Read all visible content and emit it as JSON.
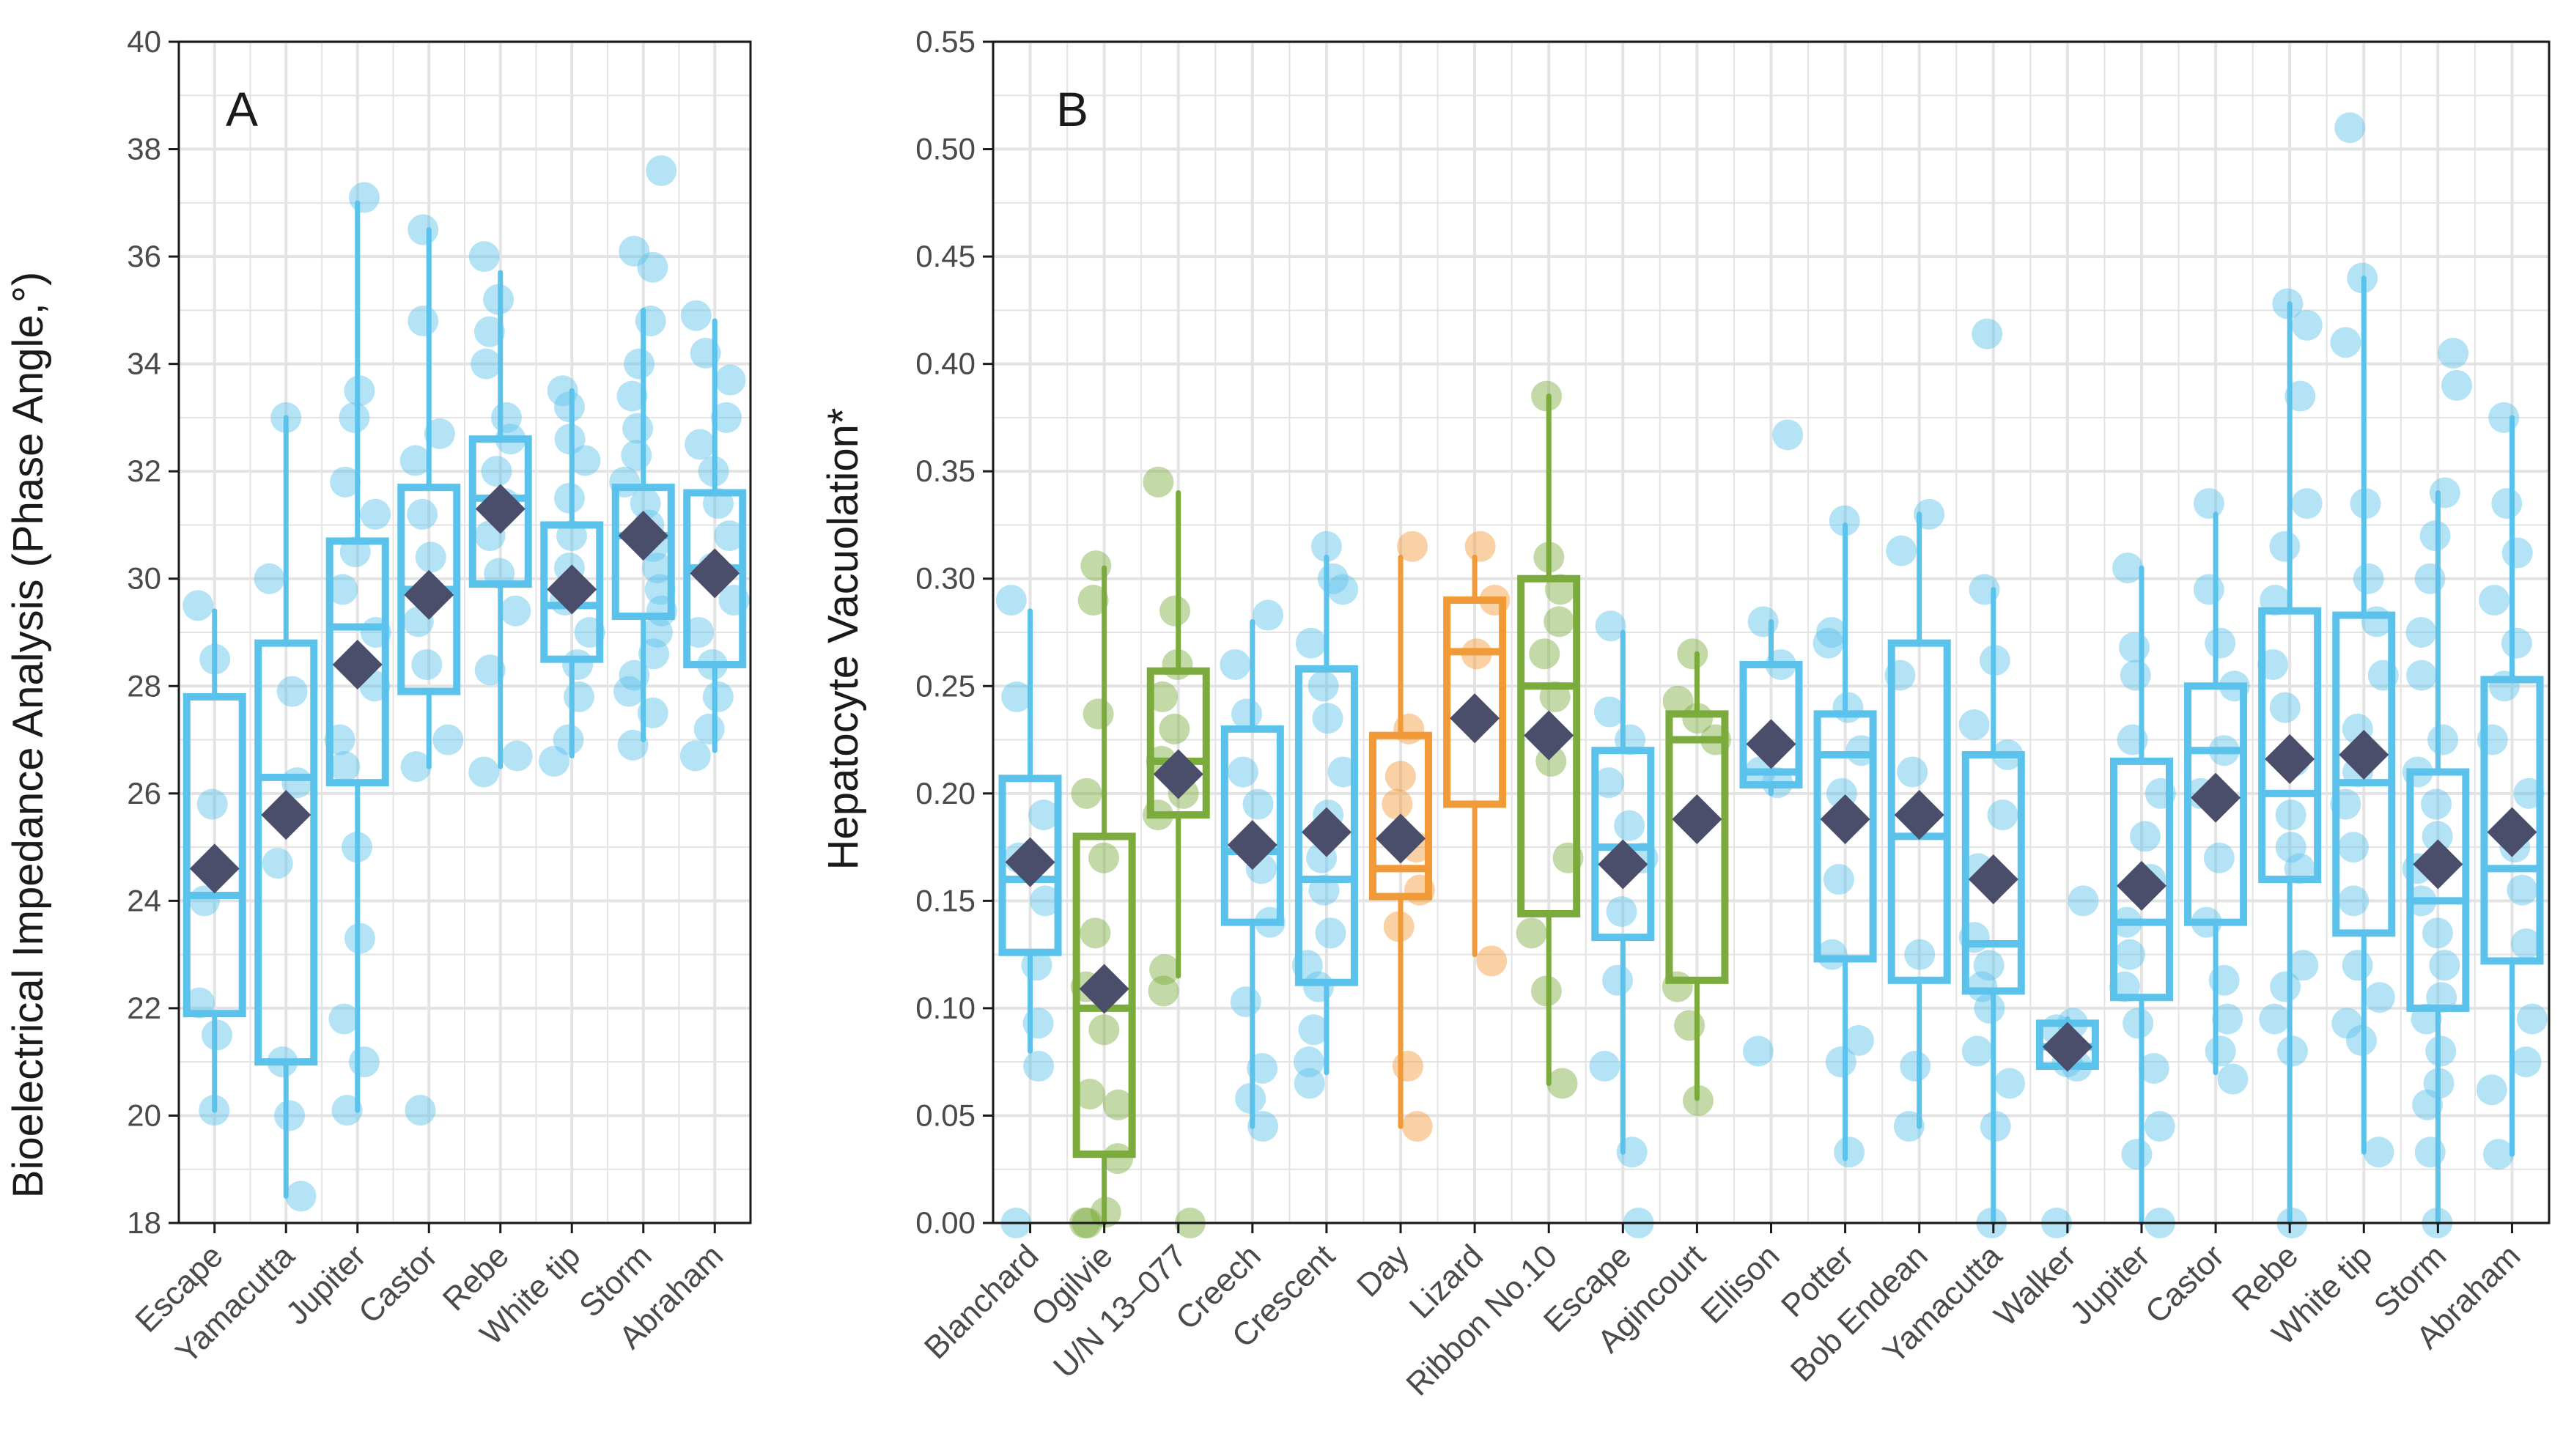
{
  "colors": {
    "blue": "#5bc2ec",
    "green": "#7aab3c",
    "orange": "#f29a37",
    "mean": "#4a4e6b",
    "grid": "#e3e3e3",
    "axis": "#1a1a1a"
  },
  "chart_data": [
    {
      "type": "box",
      "panel": "A",
      "title": "",
      "xlabel": "",
      "ylabel": "Bioelectrical Impedance Analysis (Phase Angle,°)",
      "ylim": [
        18,
        40
      ],
      "yticks": [
        18,
        20,
        22,
        24,
        26,
        28,
        30,
        32,
        34,
        36,
        38,
        40
      ],
      "ytick_labels": [
        "18",
        "20",
        "22",
        "24",
        "26",
        "28",
        "30",
        "32",
        "34",
        "36",
        "38",
        "40"
      ],
      "grid": true,
      "categories": [
        "Escape",
        "Yamacutta",
        "Jupiter",
        "Castor",
        "Rebe",
        "White tip",
        "Storm",
        "Abraham"
      ],
      "groups": [
        {
          "name": "Escape",
          "color": "blue",
          "whisker_low": 20.1,
          "q1": 21.9,
          "median": 24.1,
          "q3": 27.8,
          "whisker_high": 29.4,
          "mean": 24.6,
          "points": [
            20.1,
            21.5,
            22.1,
            24.0,
            25.8,
            28.5,
            29.5
          ]
        },
        {
          "name": "Yamacutta",
          "color": "blue",
          "whisker_low": 18.5,
          "q1": 21.0,
          "median": 26.3,
          "q3": 28.8,
          "whisker_high": 33.0,
          "mean": 25.6,
          "points": [
            18.5,
            20.0,
            21.0,
            24.7,
            26.2,
            27.9,
            30.0,
            33.0
          ]
        },
        {
          "name": "Jupiter",
          "color": "blue",
          "whisker_low": 20.1,
          "q1": 26.2,
          "median": 29.1,
          "q3": 30.7,
          "whisker_high": 37.0,
          "mean": 28.4,
          "points": [
            20.1,
            21.0,
            21.8,
            23.3,
            25.0,
            26.5,
            27.0,
            28.0,
            29.0,
            29.8,
            30.5,
            31.2,
            31.8,
            33.0,
            33.5,
            37.1
          ]
        },
        {
          "name": "Castor",
          "color": "blue",
          "whisker_low": 26.5,
          "q1": 27.9,
          "median": 29.8,
          "q3": 31.7,
          "whisker_high": 36.5,
          "mean": 29.7,
          "points": [
            20.1,
            26.5,
            27.0,
            28.4,
            29.2,
            30.4,
            31.2,
            32.2,
            32.7,
            34.8,
            36.5
          ]
        },
        {
          "name": "Rebe",
          "color": "blue",
          "whisker_low": 26.5,
          "q1": 29.9,
          "median": 31.5,
          "q3": 32.6,
          "whisker_high": 35.7,
          "mean": 31.3,
          "points": [
            26.4,
            26.7,
            28.3,
            29.4,
            30.1,
            30.8,
            31.4,
            32.0,
            32.6,
            33.0,
            34.0,
            34.6,
            35.2,
            36.0
          ]
        },
        {
          "name": "White tip",
          "color": "blue",
          "whisker_low": 26.7,
          "q1": 28.5,
          "median": 29.5,
          "q3": 31.0,
          "whisker_high": 33.5,
          "mean": 29.8,
          "points": [
            26.6,
            27.0,
            27.8,
            28.4,
            29.0,
            29.6,
            30.2,
            30.8,
            31.5,
            32.2,
            32.6,
            33.2,
            33.5
          ]
        },
        {
          "name": "Storm",
          "color": "blue",
          "whisker_low": 27.0,
          "q1": 29.3,
          "median": 30.8,
          "q3": 31.7,
          "whisker_high": 35.0,
          "mean": 30.8,
          "points": [
            26.9,
            27.5,
            27.9,
            28.2,
            28.6,
            29.0,
            29.4,
            29.8,
            30.2,
            30.6,
            31.0,
            31.4,
            31.8,
            32.3,
            32.8,
            33.4,
            34.0,
            34.8,
            35.8,
            36.1,
            37.6
          ]
        },
        {
          "name": "Abraham",
          "color": "blue",
          "whisker_low": 26.8,
          "q1": 28.4,
          "median": 30.2,
          "q3": 31.6,
          "whisker_high": 34.8,
          "mean": 30.1,
          "points": [
            26.7,
            27.2,
            27.8,
            28.4,
            29.0,
            29.6,
            30.2,
            30.8,
            31.4,
            32.0,
            32.5,
            33.0,
            33.7,
            34.2,
            34.9
          ]
        }
      ],
      "annotation": "A"
    },
    {
      "type": "box",
      "panel": "B",
      "title": "",
      "xlabel": "",
      "ylabel": "Hepatocyte Vacuolation*",
      "ylim": [
        0,
        0.55
      ],
      "yticks": [
        0,
        0.05,
        0.1,
        0.15,
        0.2,
        0.25,
        0.3,
        0.35,
        0.4,
        0.45,
        0.5,
        0.55
      ],
      "ytick_labels": [
        "0.00",
        "0.05",
        "0.10",
        "0.15",
        "0.20",
        "0.25",
        "0.30",
        "0.35",
        "0.40",
        "0.45",
        "0.50",
        "0.55"
      ],
      "grid": true,
      "categories": [
        "Blanchard",
        "Ogilvie",
        "U/N 13–077",
        "Creech",
        "Crescent",
        "Day",
        "Lizard",
        "Ribbon No.10",
        "Escape",
        "Agincourt",
        "Ellison",
        "Potter",
        "Bob Endean",
        "Yamacutta",
        "Walker",
        "Jupiter",
        "Castor",
        "Rebe",
        "White tip",
        "Storm",
        "Abraham"
      ],
      "groups": [
        {
          "name": "Blanchard",
          "color": "blue",
          "whisker_low": 0.08,
          "q1": 0.126,
          "median": 0.16,
          "q3": 0.207,
          "whisker_high": 0.285,
          "mean": 0.168,
          "points": [
            0.0,
            0.073,
            0.093,
            0.12,
            0.15,
            0.17,
            0.19,
            0.245,
            0.29
          ]
        },
        {
          "name": "Ogilvie",
          "color": "green",
          "whisker_low": 0.0,
          "q1": 0.032,
          "median": 0.1,
          "q3": 0.18,
          "whisker_high": 0.305,
          "mean": 0.109,
          "points": [
            0.0,
            0.0,
            0.005,
            0.03,
            0.055,
            0.06,
            0.09,
            0.11,
            0.135,
            0.17,
            0.2,
            0.237,
            0.29,
            0.306
          ]
        },
        {
          "name": "U/N 13–077",
          "color": "green",
          "whisker_low": 0.115,
          "q1": 0.19,
          "median": 0.215,
          "q3": 0.257,
          "whisker_high": 0.34,
          "mean": 0.209,
          "points": [
            0.0,
            0.108,
            0.118,
            0.19,
            0.2,
            0.215,
            0.23,
            0.245,
            0.26,
            0.285,
            0.345
          ]
        },
        {
          "name": "Creech",
          "color": "blue",
          "whisker_low": 0.045,
          "q1": 0.14,
          "median": 0.173,
          "q3": 0.23,
          "whisker_high": 0.28,
          "mean": 0.176,
          "points": [
            0.045,
            0.058,
            0.072,
            0.103,
            0.14,
            0.165,
            0.195,
            0.21,
            0.237,
            0.26,
            0.283
          ]
        },
        {
          "name": "Crescent",
          "color": "blue",
          "whisker_low": 0.07,
          "q1": 0.112,
          "median": 0.16,
          "q3": 0.258,
          "whisker_high": 0.31,
          "mean": 0.182,
          "points": [
            0.065,
            0.075,
            0.09,
            0.11,
            0.12,
            0.135,
            0.155,
            0.17,
            0.19,
            0.21,
            0.235,
            0.25,
            0.27,
            0.295,
            0.3,
            0.315
          ]
        },
        {
          "name": "Day",
          "color": "orange",
          "whisker_low": 0.045,
          "q1": 0.152,
          "median": 0.165,
          "q3": 0.227,
          "whisker_high": 0.31,
          "mean": 0.179,
          "points": [
            0.045,
            0.073,
            0.138,
            0.155,
            0.175,
            0.195,
            0.208,
            0.23,
            0.315
          ]
        },
        {
          "name": "Lizard",
          "color": "orange",
          "whisker_low": 0.125,
          "q1": 0.195,
          "median": 0.266,
          "q3": 0.29,
          "whisker_high": 0.31,
          "mean": 0.235,
          "points": [
            0.122,
            0.265,
            0.29,
            0.315
          ]
        },
        {
          "name": "Ribbon No.10",
          "color": "green",
          "whisker_low": 0.065,
          "q1": 0.144,
          "median": 0.25,
          "q3": 0.3,
          "whisker_high": 0.385,
          "mean": 0.227,
          "points": [
            0.065,
            0.108,
            0.135,
            0.17,
            0.215,
            0.245,
            0.265,
            0.28,
            0.295,
            0.31,
            0.385
          ]
        },
        {
          "name": "Escape",
          "color": "blue",
          "whisker_low": 0.033,
          "q1": 0.133,
          "median": 0.175,
          "q3": 0.22,
          "whisker_high": 0.275,
          "mean": 0.167,
          "points": [
            0.0,
            0.033,
            0.073,
            0.113,
            0.145,
            0.17,
            0.185,
            0.205,
            0.225,
            0.238,
            0.278
          ]
        },
        {
          "name": "Agincourt",
          "color": "green",
          "whisker_low": 0.058,
          "q1": 0.113,
          "median": 0.225,
          "q3": 0.237,
          "whisker_high": 0.265,
          "mean": 0.188,
          "points": [
            0.057,
            0.092,
            0.11,
            0.225,
            0.235,
            0.243,
            0.265
          ]
        },
        {
          "name": "Ellison",
          "color": "blue",
          "whisker_low": 0.2,
          "q1": 0.204,
          "median": 0.21,
          "q3": 0.26,
          "whisker_high": 0.28,
          "mean": 0.223,
          "points": [
            0.08,
            0.205,
            0.21,
            0.26,
            0.28,
            0.367
          ]
        },
        {
          "name": "Potter",
          "color": "blue",
          "whisker_low": 0.03,
          "q1": 0.123,
          "median": 0.218,
          "q3": 0.237,
          "whisker_high": 0.325,
          "mean": 0.188,
          "points": [
            0.033,
            0.075,
            0.085,
            0.125,
            0.16,
            0.2,
            0.22,
            0.24,
            0.27,
            0.275,
            0.327
          ]
        },
        {
          "name": "Bob Endean",
          "color": "blue",
          "whisker_low": 0.045,
          "q1": 0.113,
          "median": 0.18,
          "q3": 0.27,
          "whisker_high": 0.33,
          "mean": 0.19,
          "points": [
            0.045,
            0.073,
            0.125,
            0.21,
            0.255,
            0.313,
            0.33
          ]
        },
        {
          "name": "Yamacutta",
          "color": "blue",
          "whisker_low": 0.0,
          "q1": 0.108,
          "median": 0.13,
          "q3": 0.218,
          "whisker_high": 0.295,
          "mean": 0.16,
          "points": [
            0.0,
            0.045,
            0.065,
            0.08,
            0.1,
            0.11,
            0.12,
            0.133,
            0.165,
            0.19,
            0.218,
            0.232,
            0.262,
            0.295,
            0.414
          ]
        },
        {
          "name": "Walker",
          "color": "blue",
          "whisker_low": 0.072,
          "q1": 0.073,
          "median": 0.082,
          "q3": 0.093,
          "whisker_high": 0.095,
          "mean": 0.082,
          "points": [
            0.0,
            0.073,
            0.075,
            0.09,
            0.093,
            0.15
          ]
        },
        {
          "name": "Jupiter",
          "color": "blue",
          "whisker_low": 0.0,
          "q1": 0.105,
          "median": 0.14,
          "q3": 0.215,
          "whisker_high": 0.305,
          "mean": 0.157,
          "points": [
            0.0,
            0.032,
            0.045,
            0.072,
            0.093,
            0.11,
            0.125,
            0.14,
            0.16,
            0.18,
            0.2,
            0.225,
            0.255,
            0.268,
            0.305
          ]
        },
        {
          "name": "Castor",
          "color": "blue",
          "whisker_low": 0.07,
          "q1": 0.14,
          "median": 0.22,
          "q3": 0.25,
          "whisker_high": 0.33,
          "mean": 0.198,
          "points": [
            0.067,
            0.08,
            0.095,
            0.113,
            0.14,
            0.17,
            0.2,
            0.22,
            0.25,
            0.27,
            0.295,
            0.335
          ]
        },
        {
          "name": "Rebe",
          "color": "blue",
          "whisker_low": 0.0,
          "q1": 0.16,
          "median": 0.2,
          "q3": 0.285,
          "whisker_high": 0.428,
          "mean": 0.216,
          "points": [
            0.0,
            0.08,
            0.095,
            0.11,
            0.12,
            0.165,
            0.175,
            0.19,
            0.215,
            0.24,
            0.26,
            0.29,
            0.315,
            0.335,
            0.385,
            0.418,
            0.428
          ]
        },
        {
          "name": "White tip",
          "color": "blue",
          "whisker_low": 0.033,
          "q1": 0.135,
          "median": 0.205,
          "q3": 0.283,
          "whisker_high": 0.44,
          "mean": 0.218,
          "points": [
            0.033,
            0.085,
            0.093,
            0.105,
            0.12,
            0.15,
            0.175,
            0.195,
            0.21,
            0.23,
            0.255,
            0.28,
            0.3,
            0.335,
            0.41,
            0.44,
            0.51
          ]
        },
        {
          "name": "Storm",
          "color": "blue",
          "whisker_low": 0.0,
          "q1": 0.1,
          "median": 0.15,
          "q3": 0.21,
          "whisker_high": 0.34,
          "mean": 0.167,
          "points": [
            0.0,
            0.033,
            0.055,
            0.065,
            0.08,
            0.095,
            0.105,
            0.12,
            0.135,
            0.15,
            0.165,
            0.18,
            0.195,
            0.21,
            0.225,
            0.255,
            0.275,
            0.3,
            0.32,
            0.34,
            0.39,
            0.405
          ]
        },
        {
          "name": "Abraham",
          "color": "blue",
          "whisker_low": 0.032,
          "q1": 0.122,
          "median": 0.165,
          "q3": 0.253,
          "whisker_high": 0.375,
          "mean": 0.182,
          "points": [
            0.032,
            0.062,
            0.075,
            0.095,
            0.13,
            0.155,
            0.175,
            0.2,
            0.225,
            0.25,
            0.27,
            0.29,
            0.312,
            0.335,
            0.375
          ]
        }
      ],
      "annotation": "B"
    }
  ]
}
